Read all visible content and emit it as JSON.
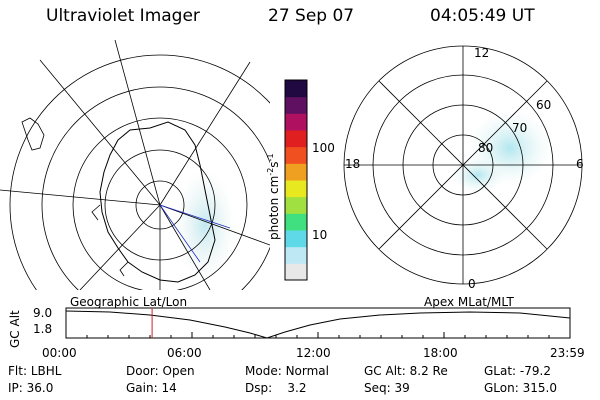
{
  "header": {
    "instrument": "Ultraviolet Imager",
    "date": "27 Sep 07",
    "time": "04:05:49 UT"
  },
  "colorbar": {
    "unit": "photon cm",
    "unit_exp1": "-2",
    "unit_s": "s",
    "unit_exp2": "-1",
    "ticks": [
      {
        "label": "100",
        "value": 100
      },
      {
        "label": "10",
        "value": 10
      }
    ],
    "colors": [
      "#e8e8e8",
      "#bfe8f5",
      "#5fd8e8",
      "#40e080",
      "#a0e040",
      "#e8e820",
      "#f0a020",
      "#f05020",
      "#e02020",
      "#b01060",
      "#601060",
      "#200840"
    ]
  },
  "polar_plot": {
    "mlt_labels": {
      "top": "12",
      "left": "18",
      "right": "6",
      "bottom": "0"
    },
    "lat_labels": [
      "60",
      "70",
      "80"
    ]
  },
  "timeline": {
    "left_label": "Geographic Lat/Lon",
    "right_label": "Apex MLat/MLT",
    "y_axis_label": "GC Alt",
    "y_ticks": [
      "9.0",
      "1.8"
    ],
    "x_ticks": [
      "00:00",
      "06:00",
      "12:00",
      "18:00",
      "23:59"
    ],
    "current_time_hours": 4.1
  },
  "status": {
    "row1": [
      {
        "key": "Flt:",
        "value": "LBHL"
      },
      {
        "key": "Door:",
        "value": "Open"
      },
      {
        "key": "Mode:",
        "value": "Normal"
      },
      {
        "key": "GC Alt:",
        "value": "8.2 Re"
      },
      {
        "key": "GLat:",
        "value": "-79.2"
      }
    ],
    "row2": [
      {
        "key": "IP:",
        "value": "36.0"
      },
      {
        "key": "Gain:",
        "value": "14"
      },
      {
        "key": "Dsp:",
        "value": "3.2"
      },
      {
        "key": "Seq:",
        "value": "39"
      },
      {
        "key": "GLon:",
        "value": "315.0"
      }
    ]
  }
}
